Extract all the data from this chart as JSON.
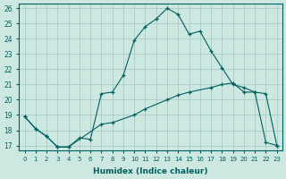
{
  "xlabel": "Humidex (Indice chaleur)",
  "ylabel": "",
  "bg_color": "#cde8e0",
  "grid_color": "#aaccc4",
  "line_color": "#006060",
  "xlim": [
    -0.5,
    23.5
  ],
  "ylim": [
    16.7,
    26.3
  ],
  "yticks": [
    17,
    18,
    19,
    20,
    21,
    22,
    23,
    24,
    25,
    26
  ],
  "xticks": [
    0,
    1,
    2,
    3,
    4,
    5,
    6,
    7,
    8,
    9,
    10,
    11,
    12,
    13,
    14,
    15,
    16,
    17,
    18,
    19,
    20,
    21,
    22,
    23
  ],
  "series1_x": [
    0,
    1,
    2,
    3,
    4,
    7,
    8,
    10,
    11,
    13,
    14,
    15,
    17,
    18,
    19,
    20,
    21,
    22,
    23
  ],
  "series1_y": [
    18.9,
    18.1,
    17.6,
    16.9,
    16.9,
    18.4,
    18.5,
    19.0,
    19.4,
    20.0,
    20.3,
    20.5,
    20.8,
    21.0,
    21.1,
    20.5,
    20.5,
    20.4,
    17.0
  ],
  "series2_x": [
    0,
    1,
    2,
    3,
    4,
    5,
    6,
    7,
    8,
    9,
    10,
    11,
    12,
    13,
    14,
    15,
    16,
    17,
    18,
    19,
    20,
    21,
    22,
    23
  ],
  "series2_y": [
    18.9,
    18.1,
    17.6,
    16.9,
    16.9,
    17.5,
    17.4,
    20.4,
    20.5,
    21.6,
    23.9,
    24.8,
    25.3,
    26.0,
    25.6,
    24.3,
    24.5,
    23.2,
    22.1,
    21.0,
    20.8,
    20.5,
    17.2,
    17.0
  ]
}
